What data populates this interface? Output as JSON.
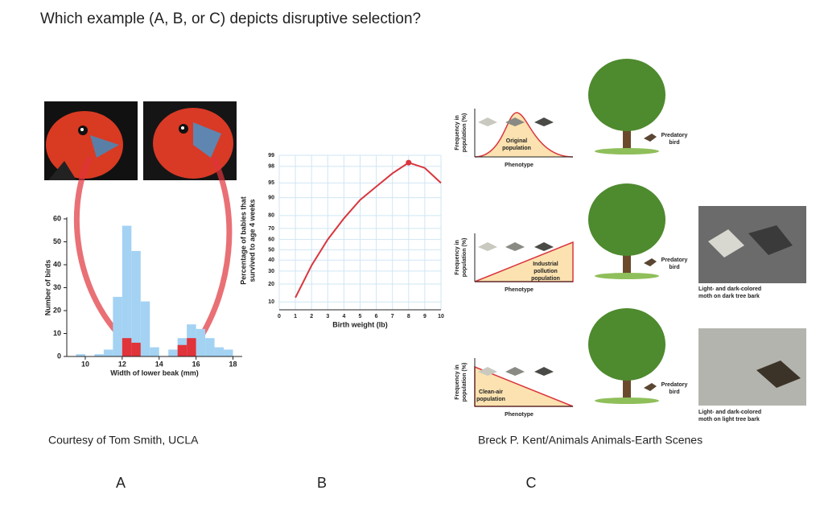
{
  "question": "Which example (A, B, or C) depicts disruptive selection?",
  "chart_data": [
    {
      "type": "histogram",
      "xlabel": "Width of lower beak (mm)",
      "ylabel": "Number of birds",
      "bins": [
        9.5,
        10,
        10.5,
        11,
        11.5,
        12,
        12.5,
        13,
        13.5,
        14,
        14.5,
        15,
        15.5,
        16,
        16.5,
        17,
        17.5,
        18
      ],
      "series": [
        {
          "color": "#a3d2f3",
          "values": [
            1,
            0,
            1,
            3,
            26,
            57,
            46,
            24,
            4,
            0,
            3,
            8,
            14,
            12,
            8,
            4,
            3
          ]
        },
        {
          "color": "#e0333a",
          "values": [
            0,
            0,
            0,
            0,
            0,
            8,
            6,
            0,
            0,
            0,
            0,
            5,
            8,
            0,
            0,
            0,
            0
          ]
        }
      ],
      "xlim": [
        9,
        18.5
      ],
      "ylim": [
        0,
        60
      ],
      "xticks": [
        10,
        12,
        14,
        16,
        18
      ],
      "yticks": [
        0,
        10,
        20,
        30,
        40,
        50,
        60
      ]
    },
    {
      "type": "line",
      "xlabel": "Birth weight (lb)",
      "ylabel": [
        "Percentage of babies that",
        "survived to age 4 weeks"
      ],
      "yscale": "probability",
      "x": [
        1,
        2,
        3,
        4,
        5,
        6,
        7,
        8,
        9,
        10
      ],
      "series": [
        {
          "color": "#d9363e",
          "values": [
            12,
            35,
            60,
            78,
            89,
            94,
            97,
            98.4,
            97.8,
            95
          ],
          "highlight": 7
        }
      ],
      "xlim": [
        0,
        10
      ],
      "ylim": [
        7,
        99
      ],
      "xticks": [
        0,
        1,
        2,
        3,
        4,
        5,
        6,
        7,
        8,
        9,
        10
      ],
      "yticks": [
        10,
        20,
        30,
        40,
        50,
        60,
        70,
        80,
        90,
        95,
        98,
        99
      ],
      "grid": true
    }
  ],
  "panel_c": {
    "rows": [
      {
        "ylabel": [
          "Frequency in",
          "population (%)"
        ],
        "xlabel": "Phenotype",
        "label": [
          "Original",
          "population"
        ],
        "bird": [
          "Predatory",
          "bird"
        ]
      },
      {
        "ylabel": [
          "Frequency in",
          "population (%)"
        ],
        "xlabel": "Phenotype",
        "label": [
          "Industrial",
          "pollution",
          "population"
        ],
        "bird": [
          "Predatory",
          "bird"
        ]
      },
      {
        "ylabel": [
          "Frequency in",
          "population (%)"
        ],
        "xlabel": "Phenotype",
        "label": [
          "Clean-air",
          "population"
        ],
        "bird": [
          "Predatory",
          "bird"
        ]
      }
    ],
    "photos": [
      {
        "caption": [
          "Light- and dark-colored",
          "moth on dark tree bark"
        ]
      },
      {
        "caption": [
          "Light- and dark-colored",
          "moth on light tree bark"
        ]
      }
    ]
  },
  "captions": [
    "Courtesy of Tom Smith, UCLA",
    "Breck P. Kent/Animals Animals-Earth Scenes"
  ],
  "options": [
    "A",
    "B",
    "C"
  ]
}
